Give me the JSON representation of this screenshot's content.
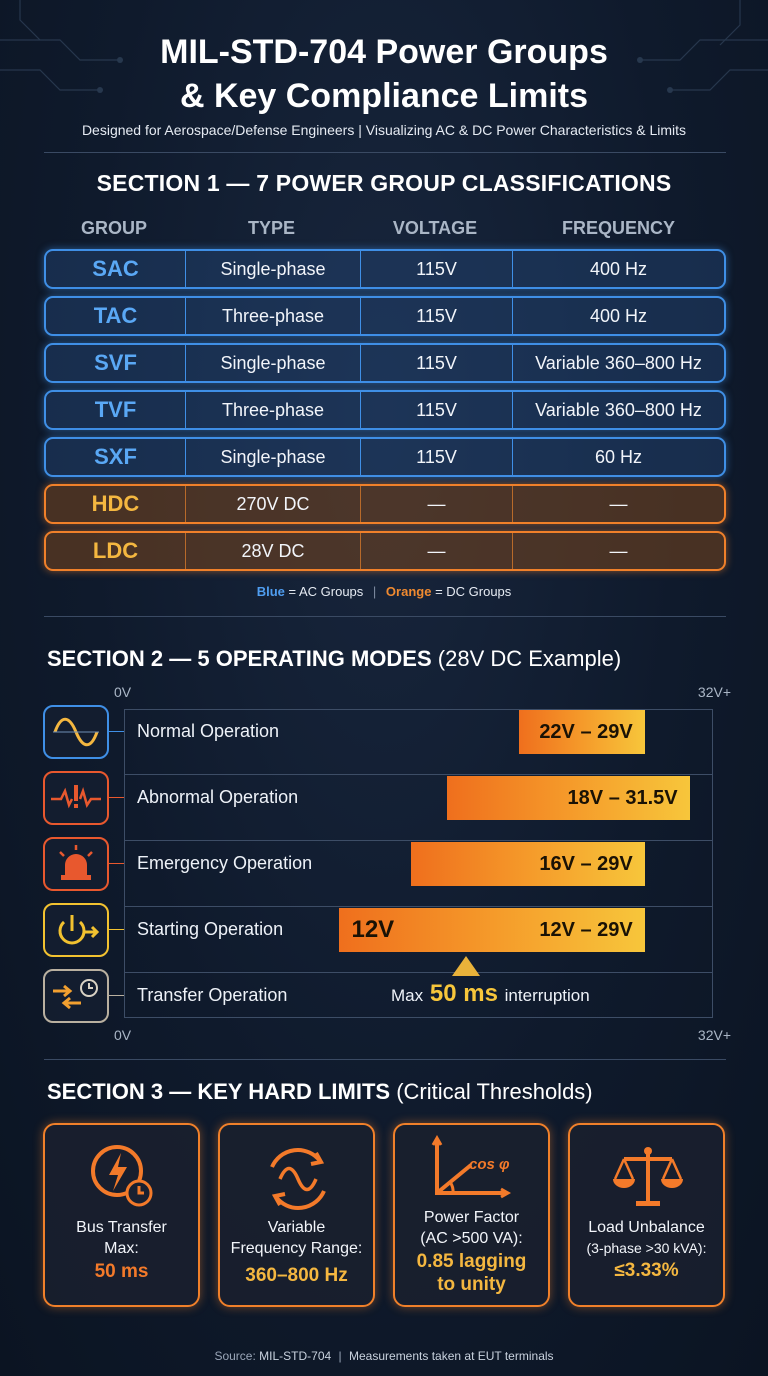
{
  "title_line1": "MIL-STD-704 Power Groups",
  "title_line2": "& Key Compliance Limits",
  "subtitle": "Designed for Aerospace/Defense Engineers | Visualizing AC & DC Power Characteristics & Limits",
  "section1": {
    "heading": "SECTION 1 — 7 POWER GROUP CLASSIFICATIONS",
    "columns": [
      "GROUP",
      "TYPE",
      "VOLTAGE",
      "FREQUENCY"
    ],
    "rows": [
      {
        "group": "SAC",
        "type": "Single-phase",
        "voltage": "115V",
        "frequency": "400 Hz",
        "kind": "AC"
      },
      {
        "group": "TAC",
        "type": "Three-phase",
        "voltage": "115V",
        "frequency": "400 Hz",
        "kind": "AC"
      },
      {
        "group": "SVF",
        "type": "Single-phase",
        "voltage": "115V",
        "frequency": "Variable 360–800 Hz",
        "kind": "AC"
      },
      {
        "group": "TVF",
        "type": "Three-phase",
        "voltage": "115V",
        "frequency": "Variable 360–800 Hz",
        "kind": "AC"
      },
      {
        "group": "SXF",
        "type": "Single-phase",
        "voltage": "115V",
        "frequency": "60 Hz",
        "kind": "AC"
      },
      {
        "group": "HDC",
        "type": "270V DC",
        "voltage": "—",
        "frequency": "—",
        "kind": "DC"
      },
      {
        "group": "LDC",
        "type": "28V DC",
        "voltage": "—",
        "frequency": "—",
        "kind": "DC"
      }
    ],
    "legend": {
      "blue_word": "Blue",
      "blue_text": "= AC Groups",
      "separator": "|",
      "orange_word": "Orange",
      "orange_text": "= DC Groups"
    }
  },
  "section2": {
    "heading_bold": "SECTION 2  —  5 OPERATING MODES",
    "heading_light": "(28V DC Example)",
    "axis_min_label": "0V",
    "axis_max_label": "32V+",
    "modes": [
      {
        "name": "Normal Operation",
        "icon": "sine-wave-icon",
        "range_label": "22V – 29V",
        "range": [
          22,
          29
        ],
        "color": "#3f8fe6"
      },
      {
        "name": "Abnormal Operation",
        "icon": "alert-waveform-icon",
        "range_label": "18V – 31.5V",
        "range": [
          18,
          31.5
        ],
        "color": "#e8582e"
      },
      {
        "name": "Emergency Operation",
        "icon": "siren-icon",
        "range_label": "16V – 29V",
        "range": [
          16,
          29
        ],
        "color": "#e8582e"
      },
      {
        "name": "Starting Operation",
        "icon": "power-arrow-icon",
        "range_label": "12V – 29V",
        "range": [
          12,
          29
        ],
        "min_label": "12V",
        "color": "#f2c230"
      },
      {
        "name": "Transfer Operation",
        "icon": "transfer-clock-icon",
        "note_prefix": "Max",
        "note_value": "50 ms",
        "note_suffix": "interruption",
        "color": "#b9b0a0"
      }
    ]
  },
  "section3": {
    "heading_bold": "SECTION 3 — KEY HARD LIMITS",
    "heading_light": "(Critical Thresholds)",
    "cards": [
      {
        "icon": "lightning-clock-icon",
        "title_lines": [
          "Bus Transfer",
          "Max:"
        ],
        "value_lines": [
          "50 ms"
        ],
        "value_color": "#f37a2a"
      },
      {
        "icon": "cycle-waveform-icon",
        "title_lines": [
          "Variable",
          "Frequency Range:"
        ],
        "value_lines": [
          "360–800 Hz"
        ],
        "value_color": "#f4b740"
      },
      {
        "icon": "power-factor-angle-icon",
        "icon_text": "cos φ",
        "title_lines": [
          "Power Factor",
          "(AC >500 VA):"
        ],
        "value_lines": [
          "0.85 lagging",
          "to unity"
        ],
        "value_color": "#f4b740"
      },
      {
        "icon": "balance-scale-icon",
        "title_lines": [
          "Load Unbalance",
          "(3-phase >30 kVA):"
        ],
        "value_lines": [
          "≤3.33%"
        ],
        "value_color": "#f4b740"
      }
    ]
  },
  "source": {
    "label": "Source:",
    "value": "MIL-STD-704",
    "separator": "|",
    "note": "Measurements taken at EUT terminals"
  }
}
